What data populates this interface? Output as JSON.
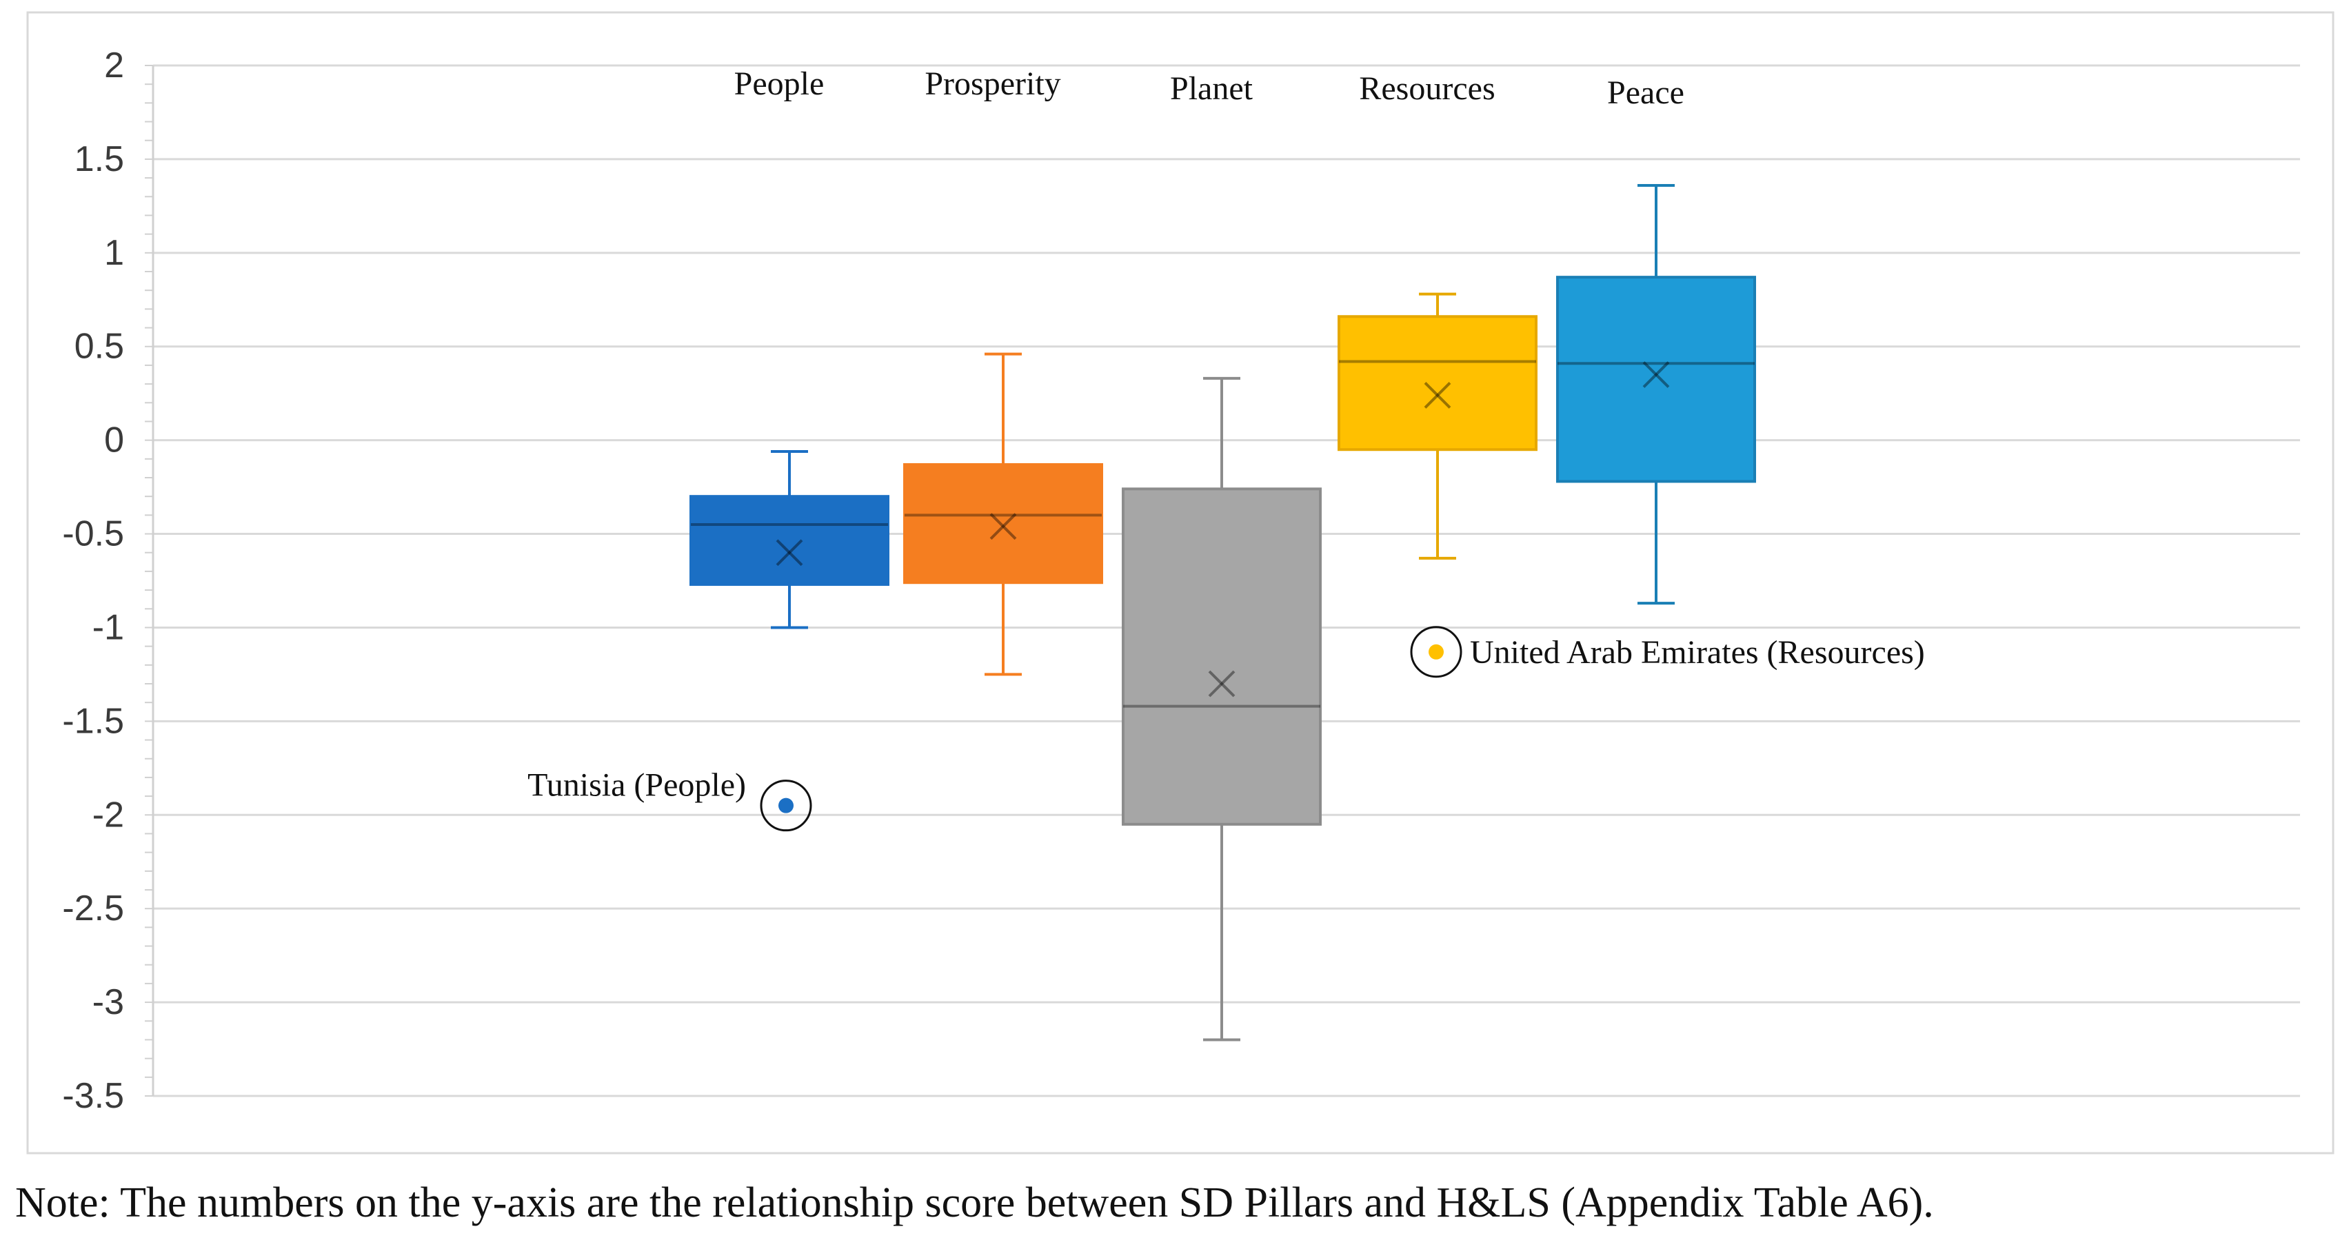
{
  "note": "Note: The numbers on the y-axis are the relationship score between SD Pillars and H&LS (Appendix Table A6).",
  "chart_data": {
    "type": "box",
    "title": "",
    "xlabel": "",
    "ylabel": "",
    "ylim": [
      -3.5,
      2
    ],
    "yticks": [
      2,
      1.5,
      1,
      0.5,
      0,
      -0.5,
      -1,
      -1.5,
      -2,
      -2.5,
      -3,
      -3.5
    ],
    "ytick_labels": [
      "2",
      "1.5",
      "1",
      "0.5",
      "0",
      "-0.5",
      "-1",
      "-1.5",
      "-2",
      "-2.5",
      "-3",
      "-3.5"
    ],
    "grid": true,
    "series": [
      {
        "name": "People",
        "color": "#1b6fc4",
        "whisker_color": "#1b6fc4",
        "min": -1.0,
        "q1": -0.77,
        "median": -0.45,
        "q3": -0.3,
        "max": -0.06,
        "mean": -0.6
      },
      {
        "name": "Prosperity",
        "color": "#f57e20",
        "whisker_color": "#f57e20",
        "min": -1.25,
        "q1": -0.76,
        "median": -0.4,
        "q3": -0.13,
        "max": 0.46,
        "mean": -0.46
      },
      {
        "name": "Planet",
        "color": "#a6a6a6",
        "whisker_color": "#8c8c8c",
        "min": -3.2,
        "q1": -2.05,
        "median": -1.42,
        "q3": -0.26,
        "max": 0.33,
        "mean": -1.3
      },
      {
        "name": "Resources",
        "color": "#ffc000",
        "whisker_color": "#e6a800",
        "min": -0.63,
        "q1": -0.05,
        "median": 0.42,
        "q3": 0.66,
        "max": 0.78,
        "mean": 0.24
      },
      {
        "name": "Peace",
        "color": "#1e9bd7",
        "whisker_color": "#1a7fb5",
        "min": -0.87,
        "q1": -0.22,
        "median": 0.41,
        "q3": 0.87,
        "max": 1.36,
        "mean": 0.35
      }
    ],
    "outliers": [
      {
        "series": "People",
        "value": -1.95,
        "label": "Tunisia (People)",
        "color": "#1b6fc4"
      },
      {
        "series": "Resources",
        "value": -1.13,
        "label": "United Arab Emirates (Resources)",
        "color": "#ffc000"
      }
    ]
  }
}
